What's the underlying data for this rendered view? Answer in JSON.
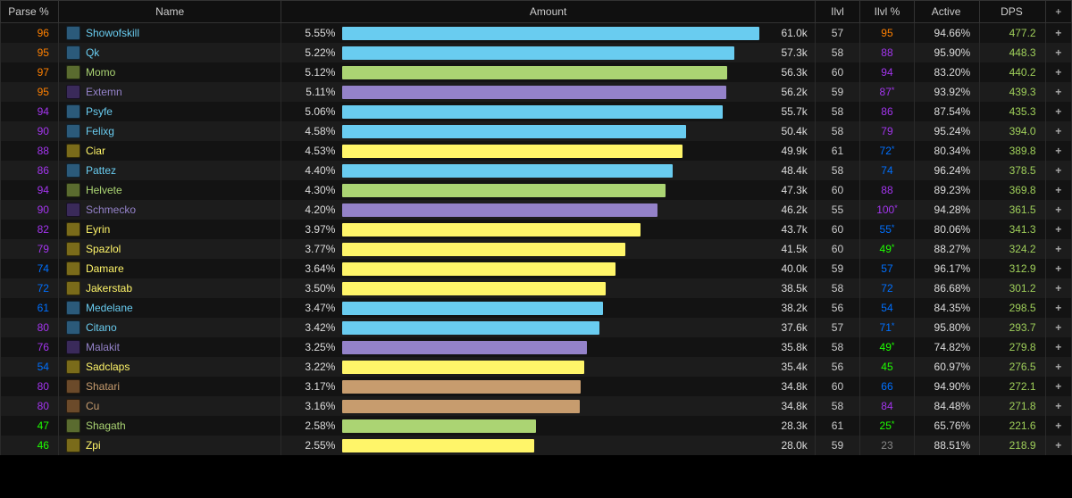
{
  "columns": {
    "parse": "Parse %",
    "name": "Name",
    "amount": "Amount",
    "ilvl": "Ilvl",
    "ilvlp": "Ilvl %",
    "active": "Active",
    "dps": "DPS",
    "plus": "+"
  },
  "max_pct": 5.55,
  "parse_colors": {
    "legendary": "#ff8000",
    "epic": "#a335ee",
    "rare": "#0070ff",
    "uncommon": "#1eff00",
    "common": "#888888"
  },
  "class_colors": {
    "mage": "#69ccf0",
    "hunter": "#abd473",
    "warlock": "#9482c9",
    "rogue": "#fff569",
    "warrior": "#c79c6e",
    "shaman": "#0070de",
    "druid": "#ff7d0a"
  },
  "icon_bg": {
    "mage": "#2b5a7a",
    "hunter": "#5a6b2f",
    "warlock": "#3a2a5a",
    "rogue": "#7a6b1a",
    "warrior": "#6b4a2a",
    "shaman": "#1a3a7a",
    "druid": "#7a3a0a"
  },
  "rows": [
    {
      "parse": 96,
      "parse_tier": "legendary",
      "name": "Showofskill",
      "cls": "mage",
      "pct": "5.55%",
      "bar_pct": 5.55,
      "amt": "61.0k",
      "ilvl": 57,
      "ilvlp": "95",
      "ilvlp_tier": "legendary",
      "ilvlp_star": false,
      "active": "94.66%",
      "dps": "477.2"
    },
    {
      "parse": 95,
      "parse_tier": "legendary",
      "name": "Qk",
      "cls": "mage",
      "pct": "5.22%",
      "bar_pct": 5.22,
      "amt": "57.3k",
      "ilvl": 58,
      "ilvlp": "88",
      "ilvlp_tier": "epic",
      "ilvlp_star": false,
      "active": "95.90%",
      "dps": "448.3"
    },
    {
      "parse": 97,
      "parse_tier": "legendary",
      "name": "Momo",
      "cls": "hunter",
      "pct": "5.12%",
      "bar_pct": 5.12,
      "amt": "56.3k",
      "ilvl": 60,
      "ilvlp": "94",
      "ilvlp_tier": "epic",
      "ilvlp_star": false,
      "active": "83.20%",
      "dps": "440.2"
    },
    {
      "parse": 95,
      "parse_tier": "legendary",
      "name": "Extemn",
      "cls": "warlock",
      "pct": "5.11%",
      "bar_pct": 5.11,
      "amt": "56.2k",
      "ilvl": 59,
      "ilvlp": "87",
      "ilvlp_tier": "epic",
      "ilvlp_star": true,
      "active": "93.92%",
      "dps": "439.3"
    },
    {
      "parse": 94,
      "parse_tier": "epic",
      "name": "Psyfe",
      "cls": "mage",
      "pct": "5.06%",
      "bar_pct": 5.06,
      "amt": "55.7k",
      "ilvl": 58,
      "ilvlp": "86",
      "ilvlp_tier": "epic",
      "ilvlp_star": false,
      "active": "87.54%",
      "dps": "435.3"
    },
    {
      "parse": 90,
      "parse_tier": "epic",
      "name": "Felixg",
      "cls": "mage",
      "pct": "4.58%",
      "bar_pct": 4.58,
      "amt": "50.4k",
      "ilvl": 58,
      "ilvlp": "79",
      "ilvlp_tier": "epic",
      "ilvlp_star": false,
      "active": "95.24%",
      "dps": "394.0"
    },
    {
      "parse": 88,
      "parse_tier": "epic",
      "name": "Ciar",
      "cls": "rogue",
      "pct": "4.53%",
      "bar_pct": 4.53,
      "amt": "49.9k",
      "ilvl": 61,
      "ilvlp": "72",
      "ilvlp_tier": "rare",
      "ilvlp_star": true,
      "active": "80.34%",
      "dps": "389.8"
    },
    {
      "parse": 86,
      "parse_tier": "epic",
      "name": "Pattez",
      "cls": "mage",
      "pct": "4.40%",
      "bar_pct": 4.4,
      "amt": "48.4k",
      "ilvl": 58,
      "ilvlp": "74",
      "ilvlp_tier": "rare",
      "ilvlp_star": false,
      "active": "96.24%",
      "dps": "378.5"
    },
    {
      "parse": 94,
      "parse_tier": "epic",
      "name": "Helvete",
      "cls": "hunter",
      "pct": "4.30%",
      "bar_pct": 4.3,
      "amt": "47.3k",
      "ilvl": 60,
      "ilvlp": "88",
      "ilvlp_tier": "epic",
      "ilvlp_star": false,
      "active": "89.23%",
      "dps": "369.8"
    },
    {
      "parse": 90,
      "parse_tier": "epic",
      "name": "Schmecko",
      "cls": "warlock",
      "pct": "4.20%",
      "bar_pct": 4.2,
      "amt": "46.2k",
      "ilvl": 55,
      "ilvlp": "100",
      "ilvlp_tier": "epic",
      "ilvlp_star": true,
      "active": "94.28%",
      "dps": "361.5"
    },
    {
      "parse": 82,
      "parse_tier": "epic",
      "name": "Eyrin",
      "cls": "rogue",
      "pct": "3.97%",
      "bar_pct": 3.97,
      "amt": "43.7k",
      "ilvl": 60,
      "ilvlp": "55",
      "ilvlp_tier": "rare",
      "ilvlp_star": true,
      "active": "80.06%",
      "dps": "341.3"
    },
    {
      "parse": 79,
      "parse_tier": "epic",
      "name": "Spazlol",
      "cls": "rogue",
      "pct": "3.77%",
      "bar_pct": 3.77,
      "amt": "41.5k",
      "ilvl": 60,
      "ilvlp": "49",
      "ilvlp_tier": "uncommon",
      "ilvlp_star": true,
      "active": "88.27%",
      "dps": "324.2"
    },
    {
      "parse": 74,
      "parse_tier": "rare",
      "name": "Damare",
      "cls": "rogue",
      "pct": "3.64%",
      "bar_pct": 3.64,
      "amt": "40.0k",
      "ilvl": 59,
      "ilvlp": "57",
      "ilvlp_tier": "rare",
      "ilvlp_star": false,
      "active": "96.17%",
      "dps": "312.9"
    },
    {
      "parse": 72,
      "parse_tier": "rare",
      "name": "Jakerstab",
      "cls": "rogue",
      "pct": "3.50%",
      "bar_pct": 3.5,
      "amt": "38.5k",
      "ilvl": 58,
      "ilvlp": "72",
      "ilvlp_tier": "rare",
      "ilvlp_star": false,
      "active": "86.68%",
      "dps": "301.2"
    },
    {
      "parse": 61,
      "parse_tier": "rare",
      "name": "Medelane",
      "cls": "mage",
      "pct": "3.47%",
      "bar_pct": 3.47,
      "amt": "38.2k",
      "ilvl": 56,
      "ilvlp": "54",
      "ilvlp_tier": "rare",
      "ilvlp_star": false,
      "active": "84.35%",
      "dps": "298.5"
    },
    {
      "parse": 80,
      "parse_tier": "epic",
      "name": "Citano",
      "cls": "mage",
      "pct": "3.42%",
      "bar_pct": 3.42,
      "amt": "37.6k",
      "ilvl": 57,
      "ilvlp": "71",
      "ilvlp_tier": "rare",
      "ilvlp_star": true,
      "active": "95.80%",
      "dps": "293.7"
    },
    {
      "parse": 76,
      "parse_tier": "epic",
      "name": "Malakit",
      "cls": "warlock",
      "pct": "3.25%",
      "bar_pct": 3.25,
      "amt": "35.8k",
      "ilvl": 58,
      "ilvlp": "49",
      "ilvlp_tier": "uncommon",
      "ilvlp_star": true,
      "active": "74.82%",
      "dps": "279.8"
    },
    {
      "parse": 54,
      "parse_tier": "rare",
      "name": "Sadclaps",
      "cls": "rogue",
      "pct": "3.22%",
      "bar_pct": 3.22,
      "amt": "35.4k",
      "ilvl": 56,
      "ilvlp": "45",
      "ilvlp_tier": "uncommon",
      "ilvlp_star": false,
      "active": "60.97%",
      "dps": "276.5"
    },
    {
      "parse": 80,
      "parse_tier": "epic",
      "name": "Shatari",
      "cls": "warrior",
      "pct": "3.17%",
      "bar_pct": 3.17,
      "amt": "34.8k",
      "ilvl": 60,
      "ilvlp": "66",
      "ilvlp_tier": "rare",
      "ilvlp_star": false,
      "active": "94.90%",
      "dps": "272.1"
    },
    {
      "parse": 80,
      "parse_tier": "epic",
      "name": "Cu",
      "cls": "warrior",
      "pct": "3.16%",
      "bar_pct": 3.16,
      "amt": "34.8k",
      "ilvl": 58,
      "ilvlp": "84",
      "ilvlp_tier": "epic",
      "ilvlp_star": false,
      "active": "84.48%",
      "dps": "271.8"
    },
    {
      "parse": 47,
      "parse_tier": "uncommon",
      "name": "Shagath",
      "cls": "hunter",
      "pct": "2.58%",
      "bar_pct": 2.58,
      "amt": "28.3k",
      "ilvl": 61,
      "ilvlp": "25",
      "ilvlp_tier": "uncommon",
      "ilvlp_star": true,
      "active": "65.76%",
      "dps": "221.6"
    },
    {
      "parse": 46,
      "parse_tier": "uncommon",
      "name": "Zpi",
      "cls": "rogue",
      "pct": "2.55%",
      "bar_pct": 2.55,
      "amt": "28.0k",
      "ilvl": 59,
      "ilvlp": "23",
      "ilvlp_tier": "common",
      "ilvlp_star": false,
      "active": "88.51%",
      "dps": "218.9"
    }
  ]
}
